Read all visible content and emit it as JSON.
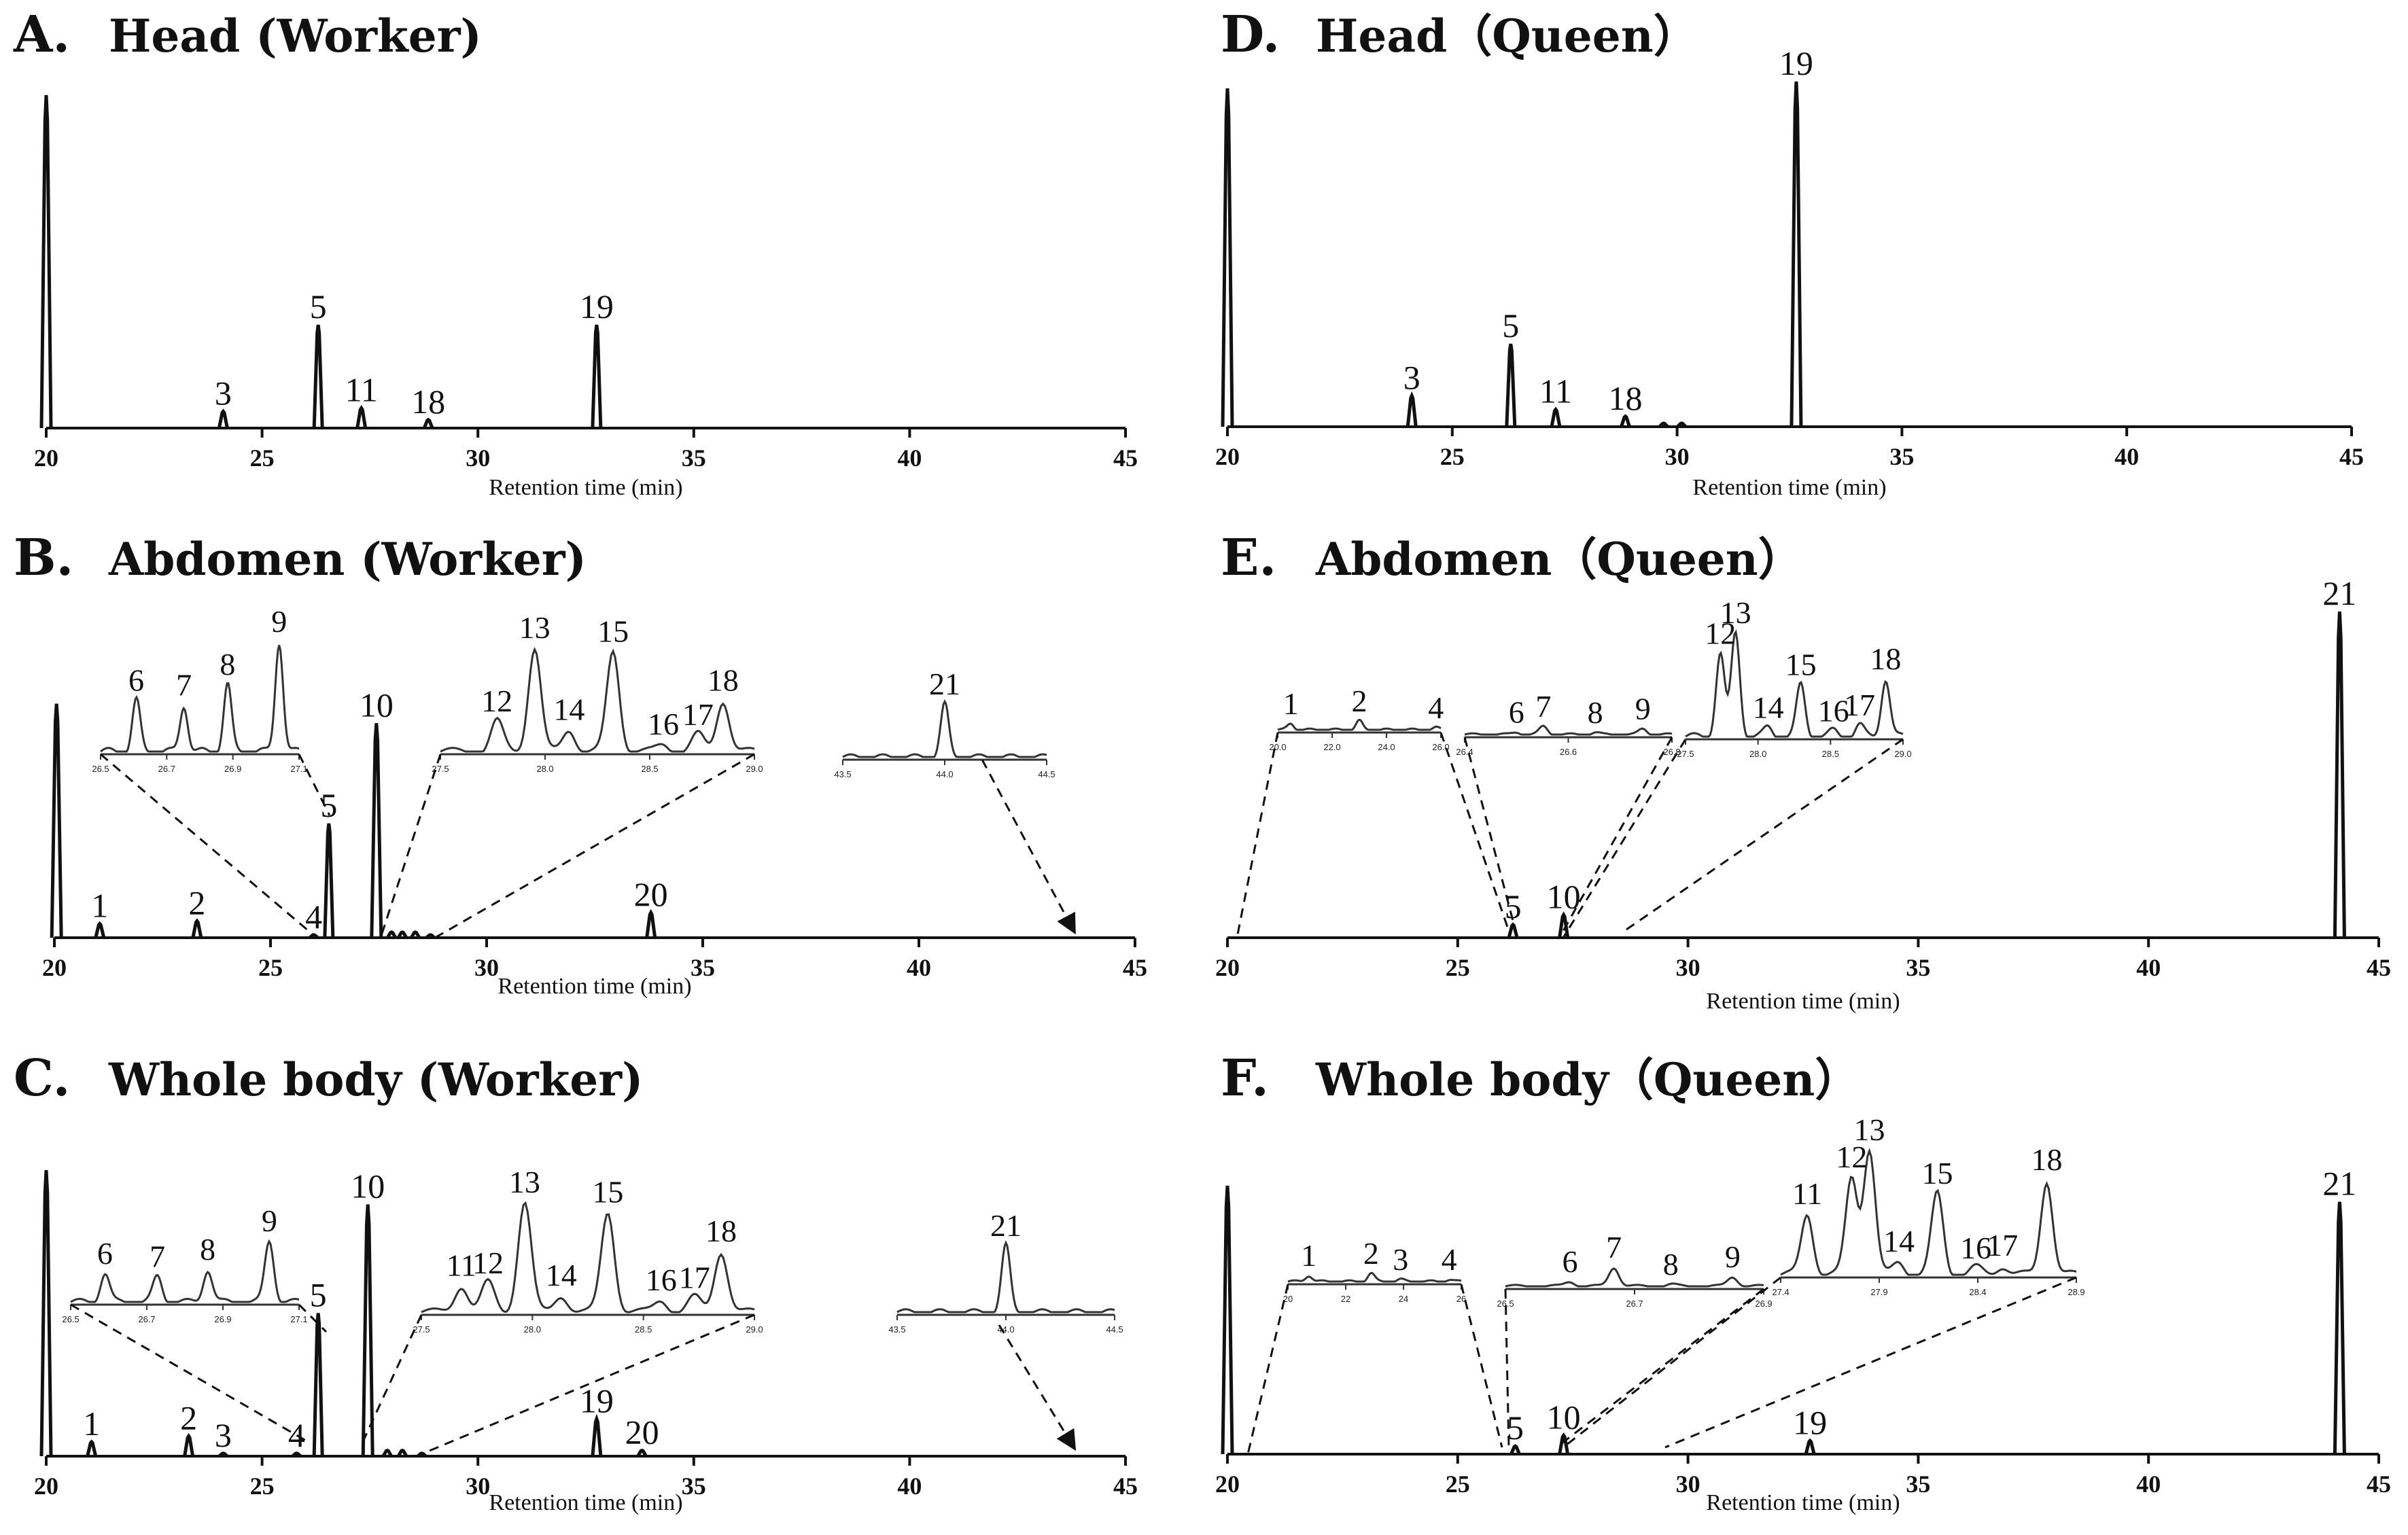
{
  "chart_data": [
    {
      "id": "A",
      "type": "line",
      "letter": "A.",
      "title": "Head (Worker)",
      "xlabel": "Retention time (min)",
      "xlim": [
        20,
        45
      ],
      "xticks": [
        20,
        25,
        30,
        35,
        40,
        45
      ],
      "scale_max": 100,
      "peaks": [
        {
          "label": "",
          "rt": 20.0,
          "h": 100
        },
        {
          "label": "3",
          "rt": 24.1,
          "h": 5
        },
        {
          "label": "5",
          "rt": 26.3,
          "h": 31
        },
        {
          "label": "11",
          "rt": 27.3,
          "h": 6
        },
        {
          "label": "18",
          "rt": 28.85,
          "h": 2.5
        },
        {
          "label": "19",
          "rt": 32.75,
          "h": 31
        }
      ],
      "insets": []
    },
    {
      "id": "B",
      "type": "line",
      "letter": "B.",
      "title": "Abdomen (Worker)",
      "xlabel": "Retention time (min)",
      "xlim": [
        20,
        45
      ],
      "xticks": [
        20,
        25,
        30,
        35,
        40,
        45
      ],
      "scale_max": 100,
      "peaks": [
        {
          "label": "",
          "rt": 20.05,
          "h": 84
        },
        {
          "label": "1",
          "rt": 21.05,
          "h": 5
        },
        {
          "label": "2",
          "rt": 23.3,
          "h": 6
        },
        {
          "label": "4",
          "rt": 26.0,
          "h": 1
        },
        {
          "label": "5",
          "rt": 26.35,
          "h": 41
        },
        {
          "label": "10",
          "rt": 27.45,
          "h": 77
        },
        {
          "label": "",
          "rt": 27.8,
          "h": 2
        },
        {
          "label": "",
          "rt": 28.05,
          "h": 2
        },
        {
          "label": "",
          "rt": 28.35,
          "h": 2
        },
        {
          "label": "",
          "rt": 28.7,
          "h": 1
        },
        {
          "label": "20",
          "rt": 33.8,
          "h": 9
        }
      ],
      "insets": [
        {
          "xticks": [
            "26.5",
            "26.7",
            "26.9",
            "27.1"
          ],
          "peaks": [
            {
              "label": "6",
              "pos": 0.18,
              "h": 0.42
            },
            {
              "label": "7",
              "pos": 0.42,
              "h": 0.38
            },
            {
              "label": "8",
              "pos": 0.64,
              "h": 0.55
            },
            {
              "label": "9",
              "pos": 0.9,
              "h": 0.9
            }
          ]
        },
        {
          "xticks": [
            "27.5",
            "28.0",
            "28.5",
            "29.0"
          ],
          "peaks": [
            {
              "label": "12",
              "pos": 0.18,
              "h": 0.25
            },
            {
              "label": "13",
              "pos": 0.3,
              "h": 0.85
            },
            {
              "label": "14",
              "pos": 0.41,
              "h": 0.18
            },
            {
              "label": "15",
              "pos": 0.55,
              "h": 0.82
            },
            {
              "label": "16",
              "pos": 0.71,
              "h": 0.06
            },
            {
              "label": "17",
              "pos": 0.82,
              "h": 0.14
            },
            {
              "label": "18",
              "pos": 0.9,
              "h": 0.42
            }
          ]
        },
        {
          "xticks": [
            "43.5",
            "44.0",
            "44.5"
          ],
          "peaks": [
            {
              "label": "21",
              "pos": 0.5,
              "h": 0.6
            }
          ]
        }
      ]
    },
    {
      "id": "C",
      "type": "line",
      "letter": "C.",
      "title": "Whole body (Worker)",
      "xlabel": "Retention time (min)",
      "xlim": [
        20,
        45
      ],
      "xticks": [
        20,
        25,
        30,
        35,
        40,
        45
      ],
      "scale_max": 100,
      "peaks": [
        {
          "label": "",
          "rt": 20.0,
          "h": 100
        },
        {
          "label": "1",
          "rt": 21.05,
          "h": 5
        },
        {
          "label": "2",
          "rt": 23.3,
          "h": 7
        },
        {
          "label": "3",
          "rt": 24.1,
          "h": 1
        },
        {
          "label": "4",
          "rt": 25.8,
          "h": 1
        },
        {
          "label": "5",
          "rt": 26.3,
          "h": 50
        },
        {
          "label": "10",
          "rt": 27.45,
          "h": 88
        },
        {
          "label": "",
          "rt": 27.9,
          "h": 2
        },
        {
          "label": "",
          "rt": 28.25,
          "h": 2
        },
        {
          "label": "",
          "rt": 28.7,
          "h": 1
        },
        {
          "label": "19",
          "rt": 32.75,
          "h": 13
        },
        {
          "label": "20",
          "rt": 33.8,
          "h": 2
        }
      ],
      "insets": [
        {
          "xticks": [
            "26.5",
            "26.7",
            "26.9",
            "27.1"
          ],
          "peaks": [
            {
              "label": "6",
              "pos": 0.15,
              "h": 0.28
            },
            {
              "label": "7",
              "pos": 0.38,
              "h": 0.25
            },
            {
              "label": "8",
              "pos": 0.6,
              "h": 0.32
            },
            {
              "label": "9",
              "pos": 0.87,
              "h": 0.6
            }
          ]
        },
        {
          "xticks": [
            "27.5",
            "28.0",
            "28.5",
            "29.0"
          ],
          "peaks": [
            {
              "label": "11",
              "pos": 0.12,
              "h": 0.22
            },
            {
              "label": "12",
              "pos": 0.2,
              "h": 0.24
            },
            {
              "label": "13",
              "pos": 0.31,
              "h": 0.9
            },
            {
              "label": "14",
              "pos": 0.42,
              "h": 0.14
            },
            {
              "label": "15",
              "pos": 0.56,
              "h": 0.82
            },
            {
              "label": "16",
              "pos": 0.72,
              "h": 0.1
            },
            {
              "label": "17",
              "pos": 0.82,
              "h": 0.12
            },
            {
              "label": "18",
              "pos": 0.9,
              "h": 0.5
            }
          ]
        },
        {
          "xticks": [
            "43.5",
            "44.0",
            "44.5"
          ],
          "peaks": [
            {
              "label": "21",
              "pos": 0.5,
              "h": 0.7
            }
          ]
        }
      ]
    },
    {
      "id": "D",
      "type": "line",
      "letter": "D.",
      "title": "Head（Queen）",
      "xlabel": "Retention time (min)",
      "xlim": [
        20,
        45
      ],
      "xticks": [
        20,
        25,
        30,
        35,
        40,
        45
      ],
      "scale_max": 100,
      "peaks": [
        {
          "label": "",
          "rt": 20.0,
          "h": 98
        },
        {
          "label": "3",
          "rt": 24.1,
          "h": 9
        },
        {
          "label": "5",
          "rt": 26.3,
          "h": 24
        },
        {
          "label": "11",
          "rt": 27.3,
          "h": 5
        },
        {
          "label": "18",
          "rt": 28.85,
          "h": 3
        },
        {
          "label": "",
          "rt": 29.7,
          "h": 1
        },
        {
          "label": "",
          "rt": 30.1,
          "h": 1
        },
        {
          "label": "19",
          "rt": 32.65,
          "h": 100
        }
      ],
      "insets": []
    },
    {
      "id": "E",
      "type": "line",
      "letter": "E.",
      "title": "Abdomen（Queen）",
      "xlabel": "Retention time (min)",
      "xlim": [
        20,
        45
      ],
      "xticks": [
        20,
        25,
        30,
        35,
        40,
        45
      ],
      "scale_max": 100,
      "peaks": [
        {
          "label": "5",
          "rt": 26.2,
          "h": 4
        },
        {
          "label": "10",
          "rt": 27.3,
          "h": 7
        },
        {
          "label": "21",
          "rt": 44.15,
          "h": 100
        }
      ],
      "insets": [
        {
          "xticks": [
            "20.0",
            "22.0",
            "24.0",
            "26.0"
          ],
          "peaks": [
            {
              "label": "1",
              "pos": 0.08,
              "h": 0.15
            },
            {
              "label": "2",
              "pos": 0.5,
              "h": 0.22
            },
            {
              "label": "4",
              "pos": 0.97,
              "h": 0.05
            }
          ]
        },
        {
          "xticks": [
            "26.4",
            "26.6",
            "26.8"
          ],
          "peaks": [
            {
              "label": "6",
              "pos": 0.25,
              "h": 0.06
            },
            {
              "label": "7",
              "pos": 0.38,
              "h": 0.2
            },
            {
              "label": "8",
              "pos": 0.63,
              "h": 0.05
            },
            {
              "label": "9",
              "pos": 0.86,
              "h": 0.14
            }
          ]
        },
        {
          "xticks": [
            "27.5",
            "28.0",
            "28.5",
            "29.0"
          ],
          "peaks": [
            {
              "label": "12",
              "pos": 0.16,
              "h": 0.72
            },
            {
              "label": "13",
              "pos": 0.23,
              "h": 0.9
            },
            {
              "label": "14",
              "pos": 0.38,
              "h": 0.08
            },
            {
              "label": "15",
              "pos": 0.53,
              "h": 0.45
            },
            {
              "label": "16",
              "pos": 0.68,
              "h": 0.05
            },
            {
              "label": "17",
              "pos": 0.8,
              "h": 0.1
            },
            {
              "label": "18",
              "pos": 0.92,
              "h": 0.5
            }
          ]
        }
      ]
    },
    {
      "id": "F",
      "type": "line",
      "letter": "F.",
      "title": "Whole body（Queen）",
      "xlabel": "Retention time (min)",
      "xlim": [
        20,
        45
      ],
      "xticks": [
        20,
        25,
        30,
        35,
        40,
        45
      ],
      "scale_max": 100,
      "peaks": [
        {
          "label": "",
          "rt": 20.0,
          "h": 100
        },
        {
          "label": "5",
          "rt": 26.25,
          "h": 3
        },
        {
          "label": "10",
          "rt": 27.3,
          "h": 7
        },
        {
          "label": "19",
          "rt": 32.65,
          "h": 5
        },
        {
          "label": "21",
          "rt": 44.15,
          "h": 94
        }
      ],
      "insets": [
        {
          "xticks": [
            "20",
            "22",
            "24",
            "26"
          ],
          "peaks": [
            {
              "label": "1",
              "pos": 0.12,
              "h": 0.15
            },
            {
              "label": "2",
              "pos": 0.48,
              "h": 0.2
            },
            {
              "label": "3",
              "pos": 0.65,
              "h": 0.05
            },
            {
              "label": "4",
              "pos": 0.93,
              "h": 0.05
            }
          ]
        },
        {
          "xticks": [
            "26.5",
            "26.7",
            "26.9"
          ],
          "peaks": [
            {
              "label": "6",
              "pos": 0.25,
              "h": 0.1
            },
            {
              "label": "7",
              "pos": 0.42,
              "h": 0.4
            },
            {
              "label": "8",
              "pos": 0.64,
              "h": 0.04
            },
            {
              "label": "9",
              "pos": 0.88,
              "h": 0.2
            }
          ]
        },
        {
          "xticks": [
            "27.4",
            "27.9",
            "28.4",
            "28.9"
          ],
          "peaks": [
            {
              "label": "11",
              "pos": 0.09,
              "h": 0.45
            },
            {
              "label": "12",
              "pos": 0.24,
              "h": 0.72
            },
            {
              "label": "13",
              "pos": 0.3,
              "h": 0.92
            },
            {
              "label": "14",
              "pos": 0.4,
              "h": 0.1
            },
            {
              "label": "15",
              "pos": 0.53,
              "h": 0.6
            },
            {
              "label": "16",
              "pos": 0.66,
              "h": 0.05
            },
            {
              "label": "17",
              "pos": 0.75,
              "h": 0.07
            },
            {
              "label": "18",
              "pos": 0.9,
              "h": 0.7
            }
          ]
        }
      ]
    }
  ]
}
